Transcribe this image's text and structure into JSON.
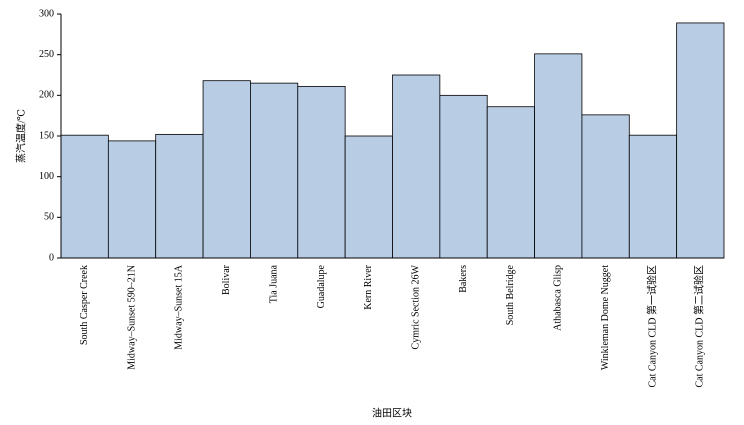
{
  "chart_data": {
    "type": "bar",
    "categories": [
      "South Casper Creek",
      "Midway–Sunset 590–21N",
      "Midway–Sunset 15A",
      "Bolivar",
      "Tia Juana",
      "Guadalupe",
      "Kern River",
      "Cymric Section 26W",
      "Bakers",
      "South Belridge",
      "Athabasca Glisp",
      "Winkleman Dome Nugget",
      "Cat Canyon CLD 第一试验区",
      "Cat Canyon CLD 第二试验区"
    ],
    "values": [
      151,
      144,
      152,
      218,
      215,
      211,
      150,
      225,
      200,
      186,
      251,
      176,
      151,
      289
    ],
    "color": "#b8cce4",
    "ylabel": "蒸汽温度/℃",
    "xlabel": "油田区块",
    "ylim": [
      0,
      300
    ],
    "yticks": [
      0,
      50,
      100,
      150,
      200,
      250,
      300
    ],
    "grid": false
  }
}
